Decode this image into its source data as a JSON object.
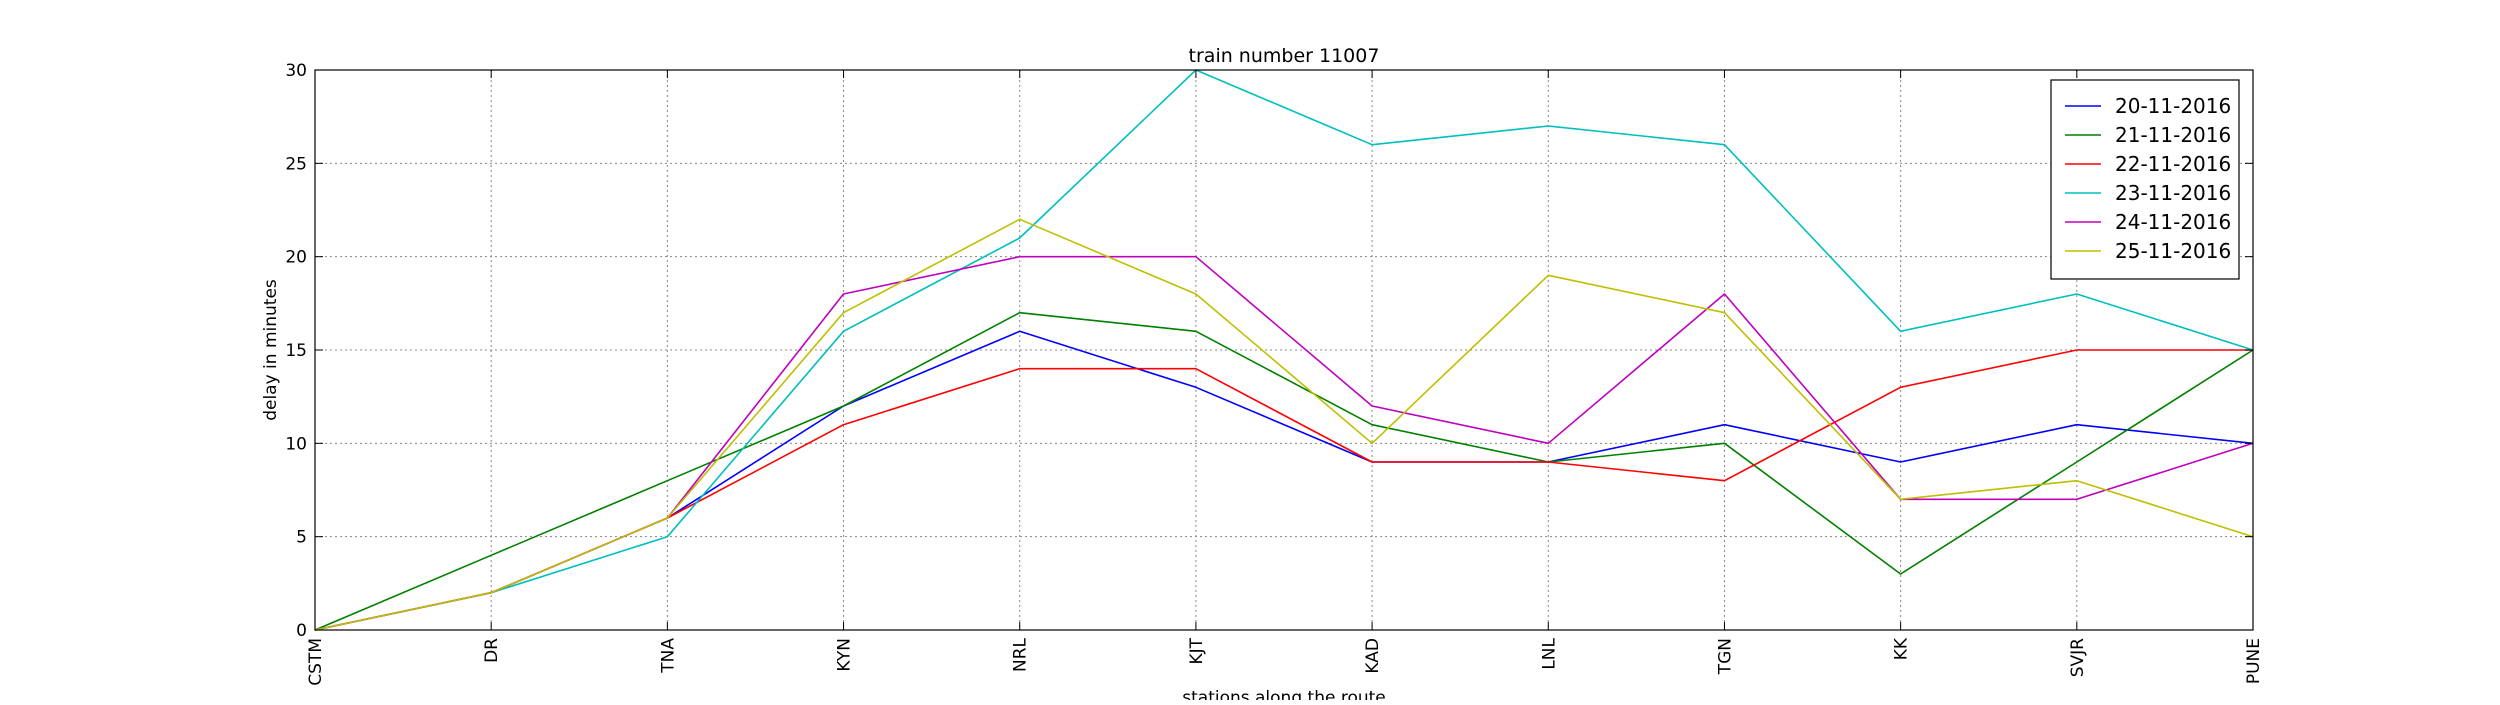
{
  "chart_data": {
    "type": "line",
    "title": "train number 11007",
    "xlabel": "stations along the route",
    "ylabel": "delay in minutes",
    "categories": [
      "CSTM",
      "DR",
      "TNA",
      "KYN",
      "NRL",
      "KJT",
      "KAD",
      "LNL",
      "TGN",
      "KK",
      "SVJR",
      "PUNE"
    ],
    "ylim": [
      0,
      30
    ],
    "yticks": [
      0,
      5,
      10,
      15,
      20,
      25,
      30
    ],
    "grid": true,
    "legend_position": "top-right",
    "series": [
      {
        "name": "20-11-2016",
        "color": "#0000ff",
        "values": [
          0,
          2,
          6,
          12,
          16,
          13,
          9,
          9,
          11,
          9,
          11,
          10
        ]
      },
      {
        "name": "21-11-2016",
        "color": "#008000",
        "values": [
          0,
          4,
          8,
          12,
          17,
          16,
          11,
          9,
          10,
          3,
          9,
          15
        ]
      },
      {
        "name": "22-11-2016",
        "color": "#ff0000",
        "values": [
          0,
          2,
          6,
          11,
          14,
          14,
          9,
          9,
          8,
          13,
          15,
          15
        ]
      },
      {
        "name": "23-11-2016",
        "color": "#00bfbf",
        "values": [
          0,
          2,
          5,
          16,
          21,
          30,
          26,
          27,
          26,
          16,
          18,
          15
        ]
      },
      {
        "name": "24-11-2016",
        "color": "#bf00bf",
        "values": [
          0,
          2,
          6,
          18,
          20,
          20,
          12,
          10,
          18,
          7,
          7,
          10
        ]
      },
      {
        "name": "25-11-2016",
        "color": "#bfbf00",
        "values": [
          0,
          2,
          6,
          17,
          22,
          18,
          10,
          19,
          17,
          7,
          8,
          5
        ]
      }
    ]
  }
}
